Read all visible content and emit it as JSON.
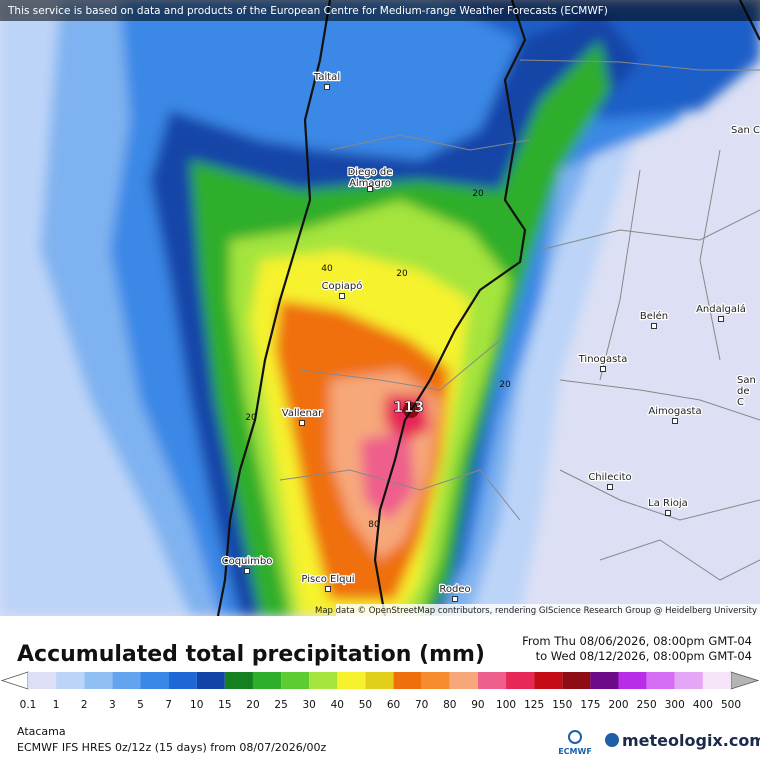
{
  "header": {
    "notice": "This service is based on data and products of the European Centre for Medium-range Weather Forecasts (ECMWF)"
  },
  "map": {
    "places": [
      {
        "lines": [
          "Taltal"
        ]
      },
      {
        "lines": [
          "Diego de",
          "Almagro"
        ]
      },
      {
        "lines": [
          "Copiapó"
        ]
      },
      {
        "lines": [
          "Vallenar"
        ]
      },
      {
        "lines": [
          "Coquimbo"
        ]
      },
      {
        "lines": [
          "Pisco Elqui"
        ]
      },
      {
        "lines": [
          "Rodeo"
        ]
      },
      {
        "lines": [
          "Chilecito"
        ]
      },
      {
        "lines": [
          "La Rioja"
        ]
      },
      {
        "lines": [
          "Aimogasta"
        ]
      },
      {
        "lines": [
          "Tinogasta"
        ]
      },
      {
        "lines": [
          "Belén"
        ]
      },
      {
        "lines": [
          "Andalgalá"
        ]
      },
      {
        "lines": [
          "San C"
        ]
      },
      {
        "lines": [
          "San",
          "de",
          "C"
        ]
      }
    ],
    "contour_labels": [
      "40",
      "20",
      "20",
      "20",
      "20",
      "80"
    ],
    "max_label": "113",
    "credit": "Map data © OpenStreetMap contributors, rendering GIScience Research Group @ Heidelberg University"
  },
  "footer": {
    "title": "Accumulated total precipitation (mm)",
    "period_from": "From Thu 08/06/2026, 08:00pm GMT-04",
    "period_to": "to Wed 08/12/2026, 08:00pm GMT-04",
    "legend": {
      "levels": [
        0.1,
        1,
        2,
        3,
        5,
        7,
        10,
        15,
        20,
        25,
        30,
        40,
        50,
        60,
        70,
        80,
        90,
        100,
        125,
        150,
        175,
        200,
        250,
        300,
        400,
        500
      ],
      "colors": [
        "#dcdff5",
        "#bcd4f8",
        "#90bff4",
        "#64a4ee",
        "#3a88e6",
        "#1d68d6",
        "#1244a8",
        "#15801f",
        "#2fae2c",
        "#5dcc33",
        "#a4e43c",
        "#f6f22e",
        "#e2cf1c",
        "#ef6f0c",
        "#f58c2e",
        "#f6a87a",
        "#ef5f8c",
        "#e62758",
        "#c50c16",
        "#8e0c14",
        "#6c0a8a",
        "#b82ee8",
        "#d46cf4",
        "#e6a6f6",
        "#f5e4f8"
      ]
    },
    "region": "Atacama",
    "model": "ECMWF IFS HRES 0z/12z (15 days) from 08/07/2026/00z",
    "logo_left": "ECMWF",
    "logo_right": "meteologix.com"
  }
}
